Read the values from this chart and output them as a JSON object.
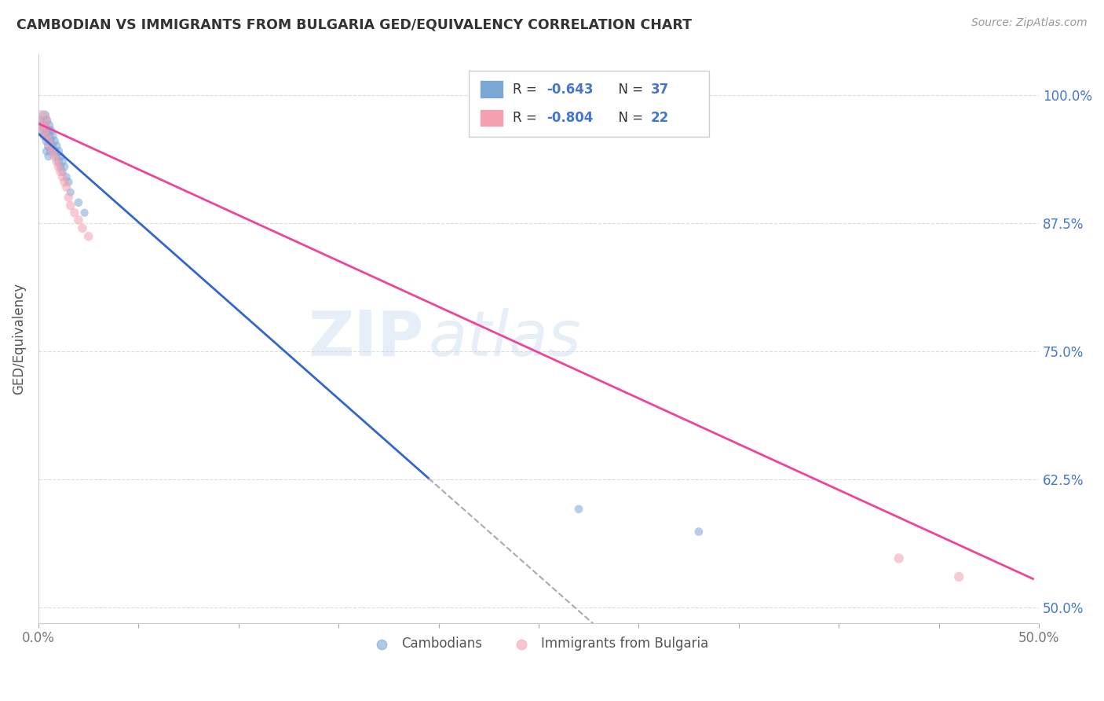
{
  "title": "CAMBODIAN VS IMMIGRANTS FROM BULGARIA GED/EQUIVALENCY CORRELATION CHART",
  "source": "Source: ZipAtlas.com",
  "ylabel": "GED/Equivalency",
  "yticks": [
    0.5,
    0.625,
    0.75,
    0.875,
    1.0
  ],
  "ytick_labels": [
    "50.0%",
    "62.5%",
    "75.0%",
    "87.5%",
    "100.0%"
  ],
  "xlim": [
    0.0,
    0.5
  ],
  "ylim": [
    0.485,
    1.04
  ],
  "legend_r1": "-0.643",
  "legend_n1": "37",
  "legend_r2": "-0.804",
  "legend_n2": "22",
  "color_cambodian": "#7BA7D4",
  "color_bulgaria": "#F4A0B0",
  "color_line_cambodian": "#3366CC",
  "color_line_bulgaria": "#EE4499",
  "color_text_blue": "#4477CC",
  "watermark": "ZIPatlas",
  "blue_line_x0": 0.0,
  "blue_line_y0": 0.962,
  "blue_line_x1": 0.195,
  "blue_line_y1": 0.626,
  "pink_line_x0": 0.0,
  "pink_line_y0": 0.972,
  "pink_line_x1": 0.497,
  "pink_line_y1": 0.528,
  "cambodian_x": [
    0.001,
    0.002,
    0.002,
    0.003,
    0.003,
    0.003,
    0.004,
    0.004,
    0.004,
    0.004,
    0.005,
    0.005,
    0.005,
    0.005,
    0.006,
    0.006,
    0.006,
    0.007,
    0.007,
    0.008,
    0.008,
    0.009,
    0.009,
    0.01,
    0.01,
    0.011,
    0.011,
    0.012,
    0.012,
    0.013,
    0.014,
    0.015,
    0.016,
    0.02,
    0.023,
    0.27,
    0.33
  ],
  "cambodian_y": [
    0.975,
    0.97,
    0.965,
    0.98,
    0.97,
    0.96,
    0.975,
    0.965,
    0.955,
    0.945,
    0.97,
    0.96,
    0.95,
    0.94,
    0.965,
    0.955,
    0.945,
    0.96,
    0.95,
    0.955,
    0.945,
    0.95,
    0.94,
    0.945,
    0.935,
    0.94,
    0.93,
    0.935,
    0.925,
    0.93,
    0.92,
    0.915,
    0.905,
    0.895,
    0.885,
    0.596,
    0.574
  ],
  "cambodian_sizes": [
    60,
    80,
    70,
    90,
    80,
    70,
    80,
    90,
    70,
    60,
    90,
    80,
    70,
    60,
    80,
    70,
    60,
    70,
    60,
    70,
    60,
    70,
    60,
    70,
    60,
    60,
    55,
    60,
    55,
    60,
    55,
    60,
    55,
    60,
    55,
    60,
    60
  ],
  "bulgaria_x": [
    0.001,
    0.002,
    0.003,
    0.004,
    0.005,
    0.006,
    0.007,
    0.008,
    0.009,
    0.01,
    0.011,
    0.012,
    0.013,
    0.014,
    0.015,
    0.016,
    0.018,
    0.02,
    0.022,
    0.025,
    0.43,
    0.46
  ],
  "bulgaria_y": [
    0.975,
    0.97,
    0.965,
    0.96,
    0.955,
    0.95,
    0.945,
    0.94,
    0.935,
    0.93,
    0.925,
    0.92,
    0.915,
    0.91,
    0.9,
    0.892,
    0.885,
    0.878,
    0.87,
    0.862,
    0.548,
    0.53
  ],
  "bulgaria_sizes": [
    350,
    70,
    70,
    70,
    70,
    70,
    70,
    70,
    70,
    70,
    70,
    70,
    70,
    70,
    70,
    70,
    70,
    70,
    70,
    70,
    80,
    80
  ]
}
